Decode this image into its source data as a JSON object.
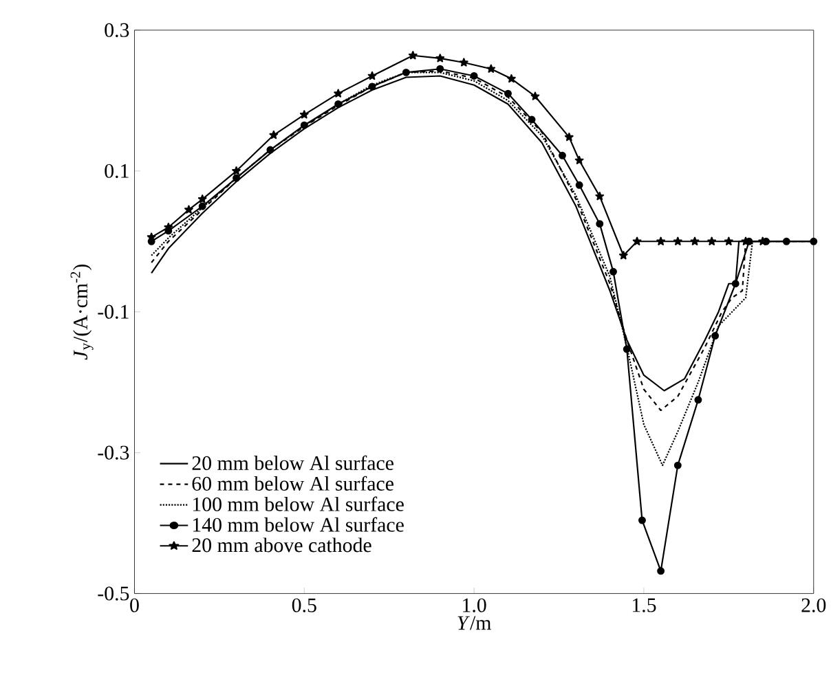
{
  "chart_data": {
    "type": "line",
    "xlabel": "*Y*/m",
    "ylabel": "*J*$_{y}$/(A·cm$^{-2}$)",
    "xlim": [
      0,
      2.0
    ],
    "ylim": [
      -0.5,
      0.3
    ],
    "xticks": [
      0,
      0.5,
      {
        "value": 1,
        "label": "1.0"
      },
      1.5,
      {
        "value": 2,
        "label": "2.0"
      }
    ],
    "yticks": [
      -0.5,
      -0.3,
      -0.1,
      0.1,
      0.3
    ],
    "grid": false,
    "legend": "bottom left",
    "series": [
      {
        "name": "20 mm below Al surface",
        "color": "#000000",
        "line_style": "solid",
        "marker": "none",
        "x": [
          0.05,
          0.1,
          0.2,
          0.3,
          0.4,
          0.5,
          0.6,
          0.7,
          0.8,
          0.9,
          1.0,
          1.1,
          1.2,
          1.3,
          1.4,
          1.45,
          1.5,
          1.56,
          1.62,
          1.68,
          1.72,
          1.75,
          1.77,
          1.78,
          2.0
        ],
        "values": [
          -0.045,
          -0.01,
          0.04,
          0.085,
          0.125,
          0.16,
          0.19,
          0.215,
          0.233,
          0.235,
          0.222,
          0.195,
          0.14,
          0.05,
          -0.07,
          -0.14,
          -0.19,
          -0.212,
          -0.195,
          -0.14,
          -0.1,
          -0.06,
          -0.06,
          0,
          0
        ]
      },
      {
        "name": "60 mm below Al surface",
        "color": "#000000",
        "line_style": "dashed",
        "marker": "none",
        "x": [
          0.05,
          0.1,
          0.2,
          0.3,
          0.4,
          0.5,
          0.6,
          0.7,
          0.8,
          0.9,
          1.0,
          1.1,
          1.2,
          1.3,
          1.4,
          1.45,
          1.5,
          1.55,
          1.6,
          1.68,
          1.73,
          1.76,
          1.79,
          1.8,
          2.0
        ],
        "values": [
          -0.03,
          0.0,
          0.045,
          0.09,
          0.13,
          0.163,
          0.193,
          0.22,
          0.24,
          0.242,
          0.232,
          0.205,
          0.155,
          0.06,
          -0.06,
          -0.14,
          -0.21,
          -0.24,
          -0.22,
          -0.15,
          -0.1,
          -0.08,
          -0.07,
          0,
          0
        ]
      },
      {
        "name": "100 mm below Al surface",
        "color": "#000000",
        "line_style": "dotted",
        "marker": "none",
        "x": [
          0.05,
          0.1,
          0.2,
          0.3,
          0.4,
          0.5,
          0.6,
          0.7,
          0.8,
          0.9,
          1.0,
          1.1,
          1.2,
          1.3,
          1.4,
          1.45,
          1.5,
          1.555,
          1.6,
          1.66,
          1.72,
          1.76,
          1.8,
          1.82,
          2.0
        ],
        "values": [
          -0.02,
          0.005,
          0.048,
          0.09,
          0.13,
          0.164,
          0.195,
          0.222,
          0.24,
          0.24,
          0.228,
          0.2,
          0.15,
          0.065,
          -0.05,
          -0.15,
          -0.26,
          -0.318,
          -0.27,
          -0.2,
          -0.12,
          -0.1,
          -0.08,
          0,
          0
        ]
      },
      {
        "name": "140 mm below Al surface",
        "color": "#000000",
        "line_style": "solid",
        "marker": "circle",
        "x": [
          0.05,
          0.1,
          0.2,
          0.3,
          0.4,
          0.5,
          0.6,
          0.7,
          0.8,
          0.9,
          1.0,
          1.1,
          1.17,
          1.26,
          1.31,
          1.37,
          1.41,
          1.45,
          1.495,
          1.55,
          1.6,
          1.66,
          1.71,
          1.77,
          1.81,
          1.86,
          1.92,
          2.0
        ],
        "values": [
          0.0,
          0.015,
          0.05,
          0.09,
          0.13,
          0.165,
          0.195,
          0.22,
          0.24,
          0.245,
          0.235,
          0.21,
          0.173,
          0.122,
          0.08,
          0.025,
          -0.043,
          -0.153,
          -0.396,
          -0.468,
          -0.318,
          -0.225,
          -0.134,
          -0.06,
          0,
          0,
          0,
          0
        ]
      },
      {
        "name": "20 mm above cathode",
        "color": "#000000",
        "line_style": "solid",
        "marker": "star",
        "x": [
          0.05,
          0.1,
          0.16,
          0.2,
          0.3,
          0.41,
          0.5,
          0.6,
          0.7,
          0.82,
          0.9,
          0.97,
          1.05,
          1.11,
          1.18,
          1.28,
          1.31,
          1.37,
          1.44,
          1.48,
          1.55,
          1.6,
          1.65,
          1.7,
          1.75,
          1.8,
          1.85
        ],
        "values": [
          0.006,
          0.02,
          0.045,
          0.06,
          0.1,
          0.151,
          0.18,
          0.21,
          0.235,
          0.264,
          0.26,
          0.254,
          0.245,
          0.231,
          0.206,
          0.148,
          0.115,
          0.064,
          -0.02,
          0.0,
          0,
          0,
          0,
          0,
          0,
          0,
          0
        ]
      }
    ]
  }
}
